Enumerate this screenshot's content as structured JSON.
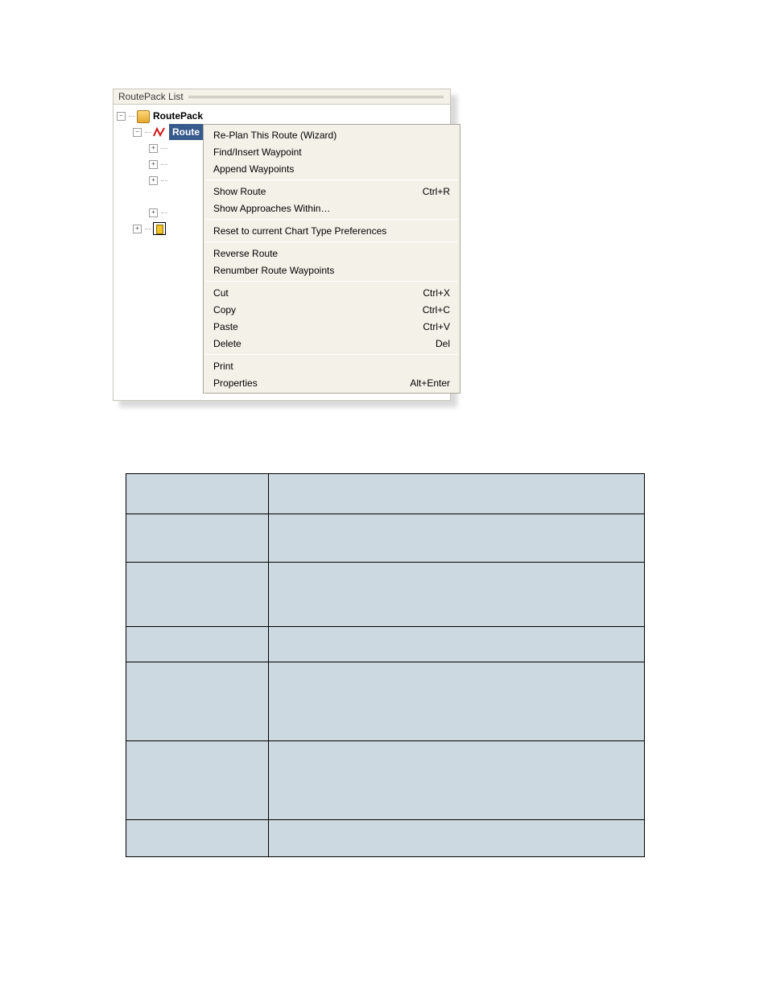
{
  "panel": {
    "title": "RoutePack List",
    "root_label": "RoutePack",
    "route_label": "Route"
  },
  "expanders": {
    "minus": "−",
    "plus": "+"
  },
  "contextMenu": {
    "groups": [
      [
        {
          "label": "Re-Plan This Route (Wizard)",
          "shortcut": ""
        },
        {
          "label": "Find/Insert Waypoint",
          "shortcut": ""
        },
        {
          "label": "Append Waypoints",
          "shortcut": ""
        }
      ],
      [
        {
          "label": "Show Route",
          "shortcut": "Ctrl+R"
        },
        {
          "label": "Show Approaches Within…",
          "shortcut": ""
        }
      ],
      [
        {
          "label": "Reset to current Chart Type Preferences",
          "shortcut": ""
        }
      ],
      [
        {
          "label": "Reverse Route",
          "shortcut": ""
        },
        {
          "label": "Renumber Route Waypoints",
          "shortcut": ""
        }
      ],
      [
        {
          "label": "Cut",
          "shortcut": "Ctrl+X"
        },
        {
          "label": "Copy",
          "shortcut": "Ctrl+C"
        },
        {
          "label": "Paste",
          "shortcut": "Ctrl+V"
        },
        {
          "label": "Delete",
          "shortcut": "Del"
        }
      ],
      [
        {
          "label": "Print",
          "shortcut": ""
        },
        {
          "label": "Properties",
          "shortcut": "Alt+Enter"
        }
      ]
    ]
  },
  "optionsTable": {
    "columns": 2,
    "colWidths": [
      "177px",
      "468px"
    ],
    "background": "#cdd9e0",
    "border": "#000000",
    "rows": [
      {
        "heightClass": "r-h1"
      },
      {
        "heightClass": "r-h2"
      },
      {
        "heightClass": "r-h3"
      },
      {
        "heightClass": "r-h6"
      },
      {
        "heightClass": "r-h4"
      },
      {
        "heightClass": "r-h4"
      },
      {
        "heightClass": "r-h5"
      }
    ]
  }
}
